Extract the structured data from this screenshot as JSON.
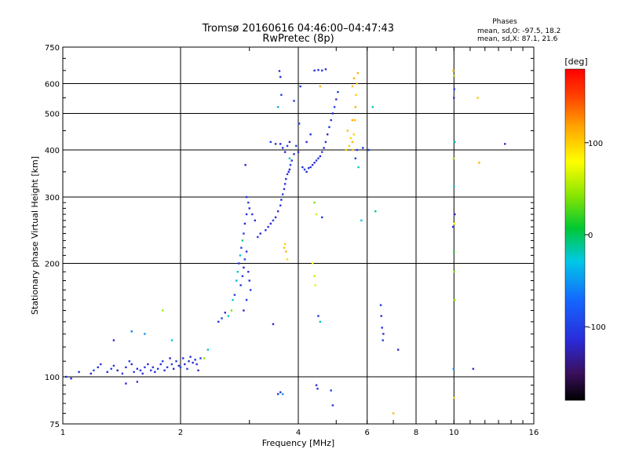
{
  "chart_data": {
    "type": "scatter",
    "title_line1": "Tromsø 20160616 04:46:00–04:47:43",
    "title_line2": "RwPretec (8p)",
    "xlabel": "Frequency [MHz]",
    "ylabel": "Stationary phase Virtual Height [km]",
    "x_scale": "log",
    "y_scale": "log",
    "xlim": [
      1,
      16
    ],
    "ylim": [
      75,
      750
    ],
    "x_ticks": [
      1,
      2,
      4,
      6,
      8,
      10,
      16
    ],
    "x_tick_labels": [
      "1",
      "2",
      "4",
      "6",
      "8",
      "10",
      "16"
    ],
    "y_ticks": [
      75,
      100,
      200,
      300,
      400,
      500,
      600,
      750
    ],
    "y_tick_labels": [
      "75",
      "100",
      "200",
      "300",
      "400",
      "500",
      "600",
      "750"
    ],
    "gridlines_x": [
      2,
      4,
      6,
      8,
      10
    ],
    "gridlines_y": [
      100,
      200,
      300,
      400,
      500,
      600
    ],
    "stats": {
      "heading": "Phases",
      "line_o": "mean, sd,O: -97.5, 18.2",
      "line_x": "mean, sd,X:  87.1, 21.6"
    },
    "colorbar": {
      "unit_label": "[deg]",
      "range": [
        -180,
        180
      ],
      "ticks": [
        100,
        0,
        -100
      ],
      "tick_labels": [
        "100",
        "0",
        "-100"
      ]
    },
    "series": [
      {
        "name": "Points",
        "points": [
          [
            1.02,
            100,
            -110
          ],
          [
            1.05,
            99,
            -115
          ],
          [
            1.1,
            103,
            -108
          ],
          [
            1.18,
            102,
            -120
          ],
          [
            1.2,
            104,
            -95
          ],
          [
            1.23,
            106,
            -112
          ],
          [
            1.25,
            108,
            -105
          ],
          [
            1.3,
            103,
            -118
          ],
          [
            1.33,
            105,
            -100
          ],
          [
            1.35,
            107,
            -110
          ],
          [
            1.38,
            104,
            -125
          ],
          [
            1.42,
            102,
            -98
          ],
          [
            1.45,
            106,
            -112
          ],
          [
            1.48,
            110,
            -105
          ],
          [
            1.5,
            108,
            -120
          ],
          [
            1.52,
            103,
            -100
          ],
          [
            1.55,
            105,
            -115
          ],
          [
            1.58,
            104,
            -108
          ],
          [
            1.6,
            102,
            -112
          ],
          [
            1.62,
            106,
            -104
          ],
          [
            1.65,
            108,
            -118
          ],
          [
            1.68,
            104,
            -100
          ],
          [
            1.7,
            106,
            -110
          ],
          [
            1.72,
            103,
            -122
          ],
          [
            1.75,
            105,
            -105
          ],
          [
            1.78,
            108,
            -115
          ],
          [
            1.8,
            110,
            -98
          ],
          [
            1.82,
            104,
            -112
          ],
          [
            1.85,
            106,
            -108
          ],
          [
            1.88,
            112,
            -120
          ],
          [
            1.9,
            108,
            -100
          ],
          [
            1.92,
            105,
            -115
          ],
          [
            1.95,
            110,
            -105
          ],
          [
            1.98,
            107,
            -118
          ],
          [
            2.0,
            106,
            -95
          ],
          [
            2.03,
            112,
            -110
          ],
          [
            2.05,
            108,
            -122
          ],
          [
            2.08,
            105,
            -100
          ],
          [
            2.1,
            110,
            -112
          ],
          [
            2.12,
            113,
            -108
          ],
          [
            2.15,
            109,
            -115
          ],
          [
            2.18,
            111,
            -104
          ],
          [
            2.2,
            108,
            -110
          ],
          [
            2.22,
            104,
            -120
          ],
          [
            2.25,
            112,
            -100
          ],
          [
            1.45,
            96,
            -115
          ],
          [
            1.55,
            97,
            -110
          ],
          [
            1.35,
            125,
            -120
          ],
          [
            1.5,
            132,
            -60
          ],
          [
            1.62,
            130,
            -50
          ],
          [
            1.8,
            150,
            50
          ],
          [
            1.9,
            125,
            -30
          ],
          [
            2.3,
            112,
            45
          ],
          [
            2.35,
            118,
            -20
          ],
          [
            2.5,
            140,
            -110
          ],
          [
            2.55,
            143,
            -100
          ],
          [
            2.6,
            148,
            -115
          ],
          [
            2.65,
            145,
            -20
          ],
          [
            2.7,
            150,
            40
          ],
          [
            2.72,
            160,
            -30
          ],
          [
            2.75,
            165,
            -100
          ],
          [
            2.78,
            180,
            -40
          ],
          [
            2.8,
            190,
            -20
          ],
          [
            2.82,
            200,
            -110
          ],
          [
            2.84,
            210,
            -25
          ],
          [
            2.86,
            220,
            -100
          ],
          [
            2.88,
            230,
            -10
          ],
          [
            2.9,
            240,
            -105
          ],
          [
            2.92,
            255,
            -120
          ],
          [
            2.95,
            270,
            -110
          ],
          [
            2.98,
            290,
            -100
          ],
          [
            3.0,
            280,
            -115
          ],
          [
            3.05,
            270,
            -108
          ],
          [
            2.85,
            175,
            -112
          ],
          [
            2.88,
            185,
            -105
          ],
          [
            2.9,
            195,
            -118
          ],
          [
            2.92,
            205,
            -100
          ],
          [
            2.95,
            215,
            -112
          ],
          [
            2.98,
            190,
            -108
          ],
          [
            3.0,
            180,
            -115
          ],
          [
            3.02,
            170,
            -104
          ],
          [
            2.95,
            160,
            -110
          ],
          [
            2.9,
            150,
            -120
          ],
          [
            2.93,
            365,
            -115
          ],
          [
            2.95,
            300,
            -108
          ],
          [
            3.1,
            260,
            -110
          ],
          [
            3.15,
            235,
            -105
          ],
          [
            3.2,
            240,
            -120
          ],
          [
            3.3,
            245,
            -112
          ],
          [
            3.35,
            250,
            -108
          ],
          [
            3.4,
            255,
            -115
          ],
          [
            3.45,
            260,
            -100
          ],
          [
            3.5,
            265,
            -118
          ],
          [
            3.55,
            275,
            -110
          ],
          [
            3.6,
            285,
            -105
          ],
          [
            3.62,
            295,
            -120
          ],
          [
            3.65,
            305,
            -100
          ],
          [
            3.68,
            315,
            -112
          ],
          [
            3.7,
            325,
            -108
          ],
          [
            3.72,
            335,
            -115
          ],
          [
            3.75,
            345,
            -104
          ],
          [
            3.78,
            350,
            -110
          ],
          [
            3.8,
            355,
            -120
          ],
          [
            3.82,
            365,
            -100
          ],
          [
            3.85,
            375,
            -112
          ],
          [
            3.6,
            415,
            -110
          ],
          [
            3.65,
            405,
            -105
          ],
          [
            3.7,
            395,
            -118
          ],
          [
            3.75,
            410,
            -100
          ],
          [
            3.8,
            420,
            -115
          ],
          [
            3.5,
            415,
            -120
          ],
          [
            3.4,
            420,
            -108
          ],
          [
            3.58,
            648,
            -115
          ],
          [
            3.6,
            625,
            -110
          ],
          [
            3.62,
            560,
            -105
          ],
          [
            3.55,
            520,
            -40
          ],
          [
            3.7,
            225,
            100
          ],
          [
            3.72,
            215,
            110
          ],
          [
            3.75,
            205,
            95
          ],
          [
            3.68,
            220,
            105
          ],
          [
            3.8,
            380,
            -20
          ],
          [
            3.9,
            390,
            -112
          ],
          [
            3.95,
            410,
            -100
          ],
          [
            4.0,
            395,
            -115
          ],
          [
            4.02,
            470,
            -108
          ],
          [
            4.05,
            590,
            -110
          ],
          [
            3.9,
            540,
            -105
          ],
          [
            3.45,
            138,
            -120
          ],
          [
            3.55,
            90,
            -110
          ],
          [
            3.6,
            91,
            -112
          ],
          [
            3.65,
            90,
            -50
          ],
          [
            4.1,
            360,
            -110
          ],
          [
            4.15,
            355,
            -105
          ],
          [
            4.2,
            350,
            -118
          ],
          [
            4.25,
            358,
            -100
          ],
          [
            4.3,
            360,
            -112
          ],
          [
            4.35,
            365,
            -108
          ],
          [
            4.4,
            370,
            -115
          ],
          [
            4.45,
            375,
            -104
          ],
          [
            4.5,
            380,
            -110
          ],
          [
            4.55,
            385,
            -120
          ],
          [
            4.6,
            395,
            -100
          ],
          [
            4.65,
            405,
            -112
          ],
          [
            4.7,
            420,
            -108
          ],
          [
            4.75,
            440,
            -115
          ],
          [
            4.8,
            460,
            -104
          ],
          [
            4.85,
            480,
            -110
          ],
          [
            4.9,
            500,
            -120
          ],
          [
            4.95,
            520,
            -100
          ],
          [
            5.0,
            545,
            -112
          ],
          [
            5.05,
            570,
            -108
          ],
          [
            4.4,
            650,
            -115
          ],
          [
            4.5,
            652,
            -110
          ],
          [
            4.6,
            650,
            -105
          ],
          [
            4.7,
            655,
            -112
          ],
          [
            4.55,
            590,
            110
          ],
          [
            4.3,
            440,
            -108
          ],
          [
            4.2,
            420,
            -115
          ],
          [
            4.4,
            290,
            40
          ],
          [
            4.45,
            270,
            60
          ],
          [
            4.6,
            265,
            -110
          ],
          [
            4.35,
            200,
            80
          ],
          [
            4.4,
            185,
            60
          ],
          [
            4.42,
            175,
            70
          ],
          [
            4.5,
            145,
            -110
          ],
          [
            4.55,
            140,
            -20
          ],
          [
            4.45,
            95,
            -112
          ],
          [
            4.48,
            93,
            -108
          ],
          [
            4.85,
            92,
            -100
          ],
          [
            4.9,
            84,
            -110
          ],
          [
            5.5,
            420,
            110
          ],
          [
            5.52,
            400,
            105
          ],
          [
            5.55,
            440,
            100
          ],
          [
            5.58,
            480,
            108
          ],
          [
            5.6,
            520,
            112
          ],
          [
            5.62,
            560,
            100
          ],
          [
            5.65,
            600,
            105
          ],
          [
            5.68,
            640,
            110
          ],
          [
            5.5,
            480,
            115
          ],
          [
            5.45,
            430,
            98
          ],
          [
            5.4,
            410,
            102
          ],
          [
            5.35,
            450,
            108
          ],
          [
            5.3,
            400,
            100
          ],
          [
            5.5,
            590,
            105
          ],
          [
            5.55,
            620,
            112
          ],
          [
            5.6,
            380,
            -100
          ],
          [
            5.7,
            360,
            -20
          ],
          [
            5.65,
            400,
            -108
          ],
          [
            5.8,
            260,
            -30
          ],
          [
            5.85,
            405,
            -110
          ],
          [
            6.05,
            400,
            -105
          ],
          [
            6.2,
            520,
            -20
          ],
          [
            6.3,
            275,
            -10
          ],
          [
            6.5,
            155,
            -108
          ],
          [
            6.52,
            145,
            -112
          ],
          [
            6.55,
            135,
            -110
          ],
          [
            6.58,
            125,
            -105
          ],
          [
            6.6,
            130,
            -118
          ],
          [
            7.0,
            80,
            110
          ],
          [
            7.2,
            118,
            -115
          ],
          [
            9.95,
            650,
            100
          ],
          [
            10.0,
            630,
            50
          ],
          [
            10.02,
            580,
            -100
          ],
          [
            10.0,
            550,
            -110
          ],
          [
            10.05,
            420,
            -20
          ],
          [
            9.98,
            380,
            50
          ],
          [
            10.0,
            320,
            -30
          ],
          [
            10.05,
            270,
            -115
          ],
          [
            10.02,
            255,
            80
          ],
          [
            9.95,
            250,
            -110
          ],
          [
            10.0,
            215,
            20
          ],
          [
            10.02,
            190,
            40
          ],
          [
            10.05,
            160,
            50
          ],
          [
            9.98,
            105,
            -60
          ],
          [
            10.0,
            88,
            100
          ],
          [
            11.5,
            550,
            100
          ],
          [
            11.6,
            370,
            110
          ],
          [
            13.5,
            415,
            -115
          ],
          [
            11.2,
            105,
            -110
          ]
        ]
      }
    ]
  }
}
